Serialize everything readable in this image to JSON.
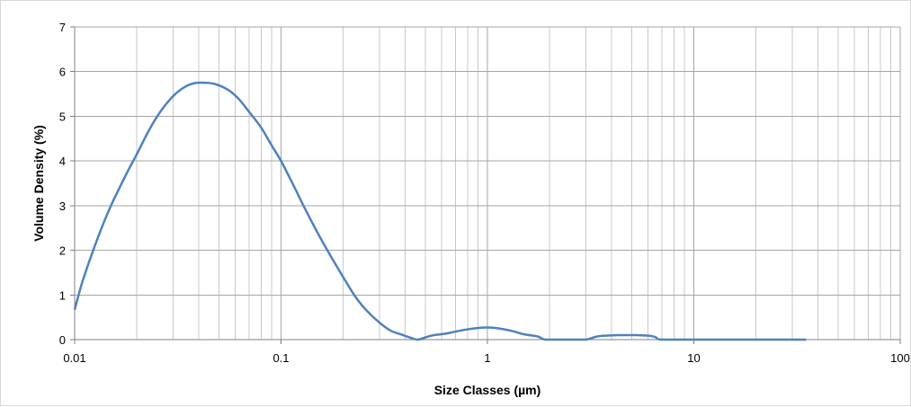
{
  "chart_data": {
    "type": "line",
    "title": "",
    "xlabel": "Size Classes (µm)",
    "ylabel": "Volume Density (%)",
    "x_scale": "log",
    "xlim": [
      0.01,
      100
    ],
    "ylim": [
      0,
      7
    ],
    "x_ticks": [
      0.01,
      0.1,
      1,
      10,
      100
    ],
    "x_tick_labels": [
      "0.01",
      "0.1",
      "1",
      "10",
      "100"
    ],
    "y_ticks": [
      0,
      1,
      2,
      3,
      4,
      5,
      6,
      7
    ],
    "y_tick_labels": [
      "0",
      "1",
      "2",
      "3",
      "4",
      "5",
      "6",
      "7"
    ],
    "grid": true,
    "minor_grid_x": true,
    "legend": "none",
    "line_color": "#4f81bd",
    "series": [
      {
        "x": [
          0.01,
          0.011,
          0.013,
          0.015,
          0.018,
          0.02,
          0.023,
          0.026,
          0.03,
          0.034,
          0.038,
          0.043,
          0.048,
          0.055,
          0.062,
          0.07,
          0.08,
          0.09,
          0.1,
          0.115,
          0.13,
          0.15,
          0.17,
          0.2,
          0.23,
          0.26,
          0.3,
          0.34,
          0.38,
          0.42,
          0.46,
          0.5,
          0.55,
          0.62,
          0.7,
          0.8,
          0.95,
          1.1,
          1.3,
          1.5,
          1.75,
          1.9,
          2.2,
          2.6,
          3.0,
          3.4,
          3.8,
          4.3,
          4.8,
          5.3,
          6.0,
          6.5,
          7.0,
          10,
          15,
          20,
          30,
          35
        ],
        "y": [
          0.67,
          1.35,
          2.3,
          3.0,
          3.75,
          4.15,
          4.7,
          5.1,
          5.45,
          5.65,
          5.74,
          5.75,
          5.72,
          5.6,
          5.4,
          5.1,
          4.75,
          4.35,
          4.0,
          3.45,
          2.95,
          2.4,
          1.95,
          1.4,
          0.95,
          0.65,
          0.38,
          0.2,
          0.12,
          0.05,
          0.0,
          0.05,
          0.1,
          0.13,
          0.18,
          0.23,
          0.27,
          0.26,
          0.2,
          0.12,
          0.07,
          0.0,
          0.0,
          0.0,
          0.0,
          0.07,
          0.09,
          0.1,
          0.1,
          0.1,
          0.09,
          0.06,
          0.0,
          0.0,
          0.0,
          0.0,
          0.0,
          0.0
        ]
      }
    ]
  }
}
